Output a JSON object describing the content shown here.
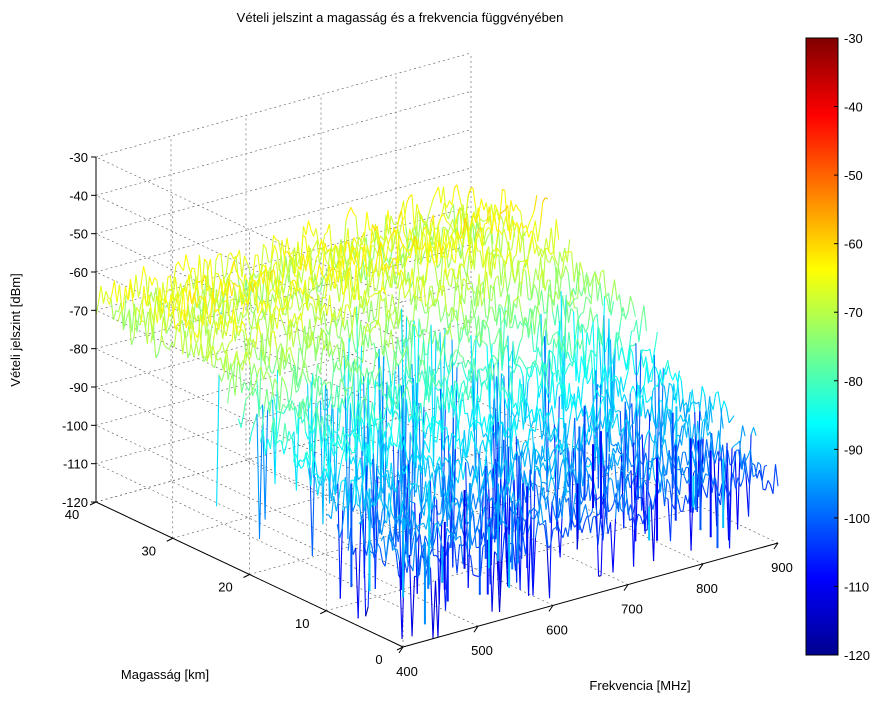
{
  "chart_data": {
    "type": "surface",
    "title": "Vételi jelszint a magasság és a frekvencia függvényében",
    "xlabel": "Frekvencia [MHz]",
    "ylabel": "Magasság [km]",
    "zlabel": "Vételi jelszint [dBm]",
    "x_ticks": [
      "400",
      "500",
      "600",
      "700",
      "800",
      "900"
    ],
    "y_ticks": [
      "0",
      "10",
      "20",
      "30",
      "40"
    ],
    "z_ticks": [
      "-30",
      "-40",
      "-50",
      "-60",
      "-70",
      "-80",
      "-90",
      "-100",
      "-110",
      "-120"
    ],
    "colorbar_ticks": [
      "-30",
      "-40",
      "-50",
      "-60",
      "-70",
      "-80",
      "-90",
      "-100",
      "-110",
      "-120"
    ],
    "xlim": [
      400,
      900
    ],
    "ylim": [
      0,
      40
    ],
    "zlim": [
      -120,
      -30
    ],
    "colormap": "jet",
    "grid": true,
    "colorbar": "right",
    "profile_by_height": [
      {
        "height": 40,
        "level": -70
      },
      {
        "height": 30,
        "level": -66
      },
      {
        "height": 20,
        "level": -78
      },
      {
        "height": 10,
        "level": -92
      },
      {
        "height": 0,
        "level": -100
      }
    ]
  }
}
